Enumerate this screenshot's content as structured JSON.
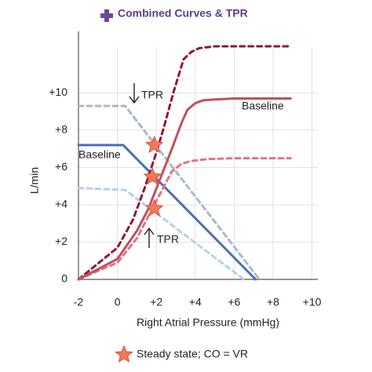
{
  "chart_data": {
    "type": "line",
    "title": "Combined Curves & TPR",
    "xlabel": "Right Atrial Pressure (mmHg)",
    "ylabel": "L/min",
    "xlim": [
      -2,
      10.3
    ],
    "ylim": [
      0,
      13.3
    ],
    "xticks": [
      -2,
      0,
      {
        "value": 2,
        "label": "+2"
      },
      {
        "value": 4,
        "label": "+4"
      },
      {
        "value": 6,
        "label": "+6"
      },
      {
        "value": 8,
        "label": "+8"
      },
      {
        "value": 10,
        "label": "+10"
      }
    ],
    "yticks": [
      0,
      {
        "value": 2,
        "label": "+2"
      },
      {
        "value": 4,
        "label": "+4"
      },
      {
        "value": 6,
        "label": "+6"
      },
      {
        "value": 8,
        "label": "+8"
      },
      {
        "value": 10,
        "label": "+10"
      }
    ],
    "grid": true,
    "series": [
      {
        "color": "#a9b8cc",
        "dash": true,
        "x": [
          -2,
          0.4,
          7.3
        ],
        "values": [
          9.3,
          9.3,
          0
        ]
      },
      {
        "color": "#b9d0ea",
        "dash": true,
        "x": [
          -2,
          0.4,
          6.5
        ],
        "values": [
          4.9,
          4.8,
          0
        ]
      },
      {
        "color": "#4a6fb5",
        "dash": false,
        "x": [
          -2,
          0.3,
          7.1
        ],
        "values": [
          7.2,
          7.2,
          0
        ]
      },
      {
        "color": "#e07585",
        "dash": true,
        "x": [
          -2,
          0,
          1,
          1.8,
          2.4,
          2.8,
          3.3,
          3.8,
          4.6,
          6,
          8.9
        ],
        "values": [
          0,
          0.9,
          2.2,
          3.8,
          5.0,
          5.8,
          6.2,
          6.35,
          6.45,
          6.5,
          6.5
        ]
      },
      {
        "color": "#8b1a3a",
        "dash": true,
        "x": [
          -2,
          0,
          0.8,
          1.4,
          2,
          2.4,
          2.9,
          3.4,
          3.8,
          4.2,
          5,
          6,
          8.9
        ],
        "values": [
          0,
          1.7,
          3.2,
          4.9,
          6.8,
          8.2,
          10.1,
          11.8,
          12.2,
          12.4,
          12.5,
          12.5,
          12.5
        ]
      },
      {
        "color": "#c0505f",
        "dash": false,
        "x": [
          -2,
          0,
          1,
          1.6,
          2.2,
          2.8,
          3.3,
          3.6,
          4,
          4.4,
          5,
          6,
          8.9
        ],
        "values": [
          0,
          1.1,
          2.6,
          3.8,
          5.4,
          7.0,
          8.4,
          9.1,
          9.45,
          9.6,
          9.65,
          9.7,
          9.7
        ]
      },
      {
        "name": "Steady state; CO = VR",
        "type": "scatter",
        "color": "#f07a5a",
        "x": [
          1.9,
          1.8,
          1.9
        ],
        "values": [
          7.2,
          5.5,
          3.8
        ]
      }
    ],
    "annotations": [
      "TPR",
      "TPR",
      "Baseline",
      "Baseline"
    ]
  }
}
